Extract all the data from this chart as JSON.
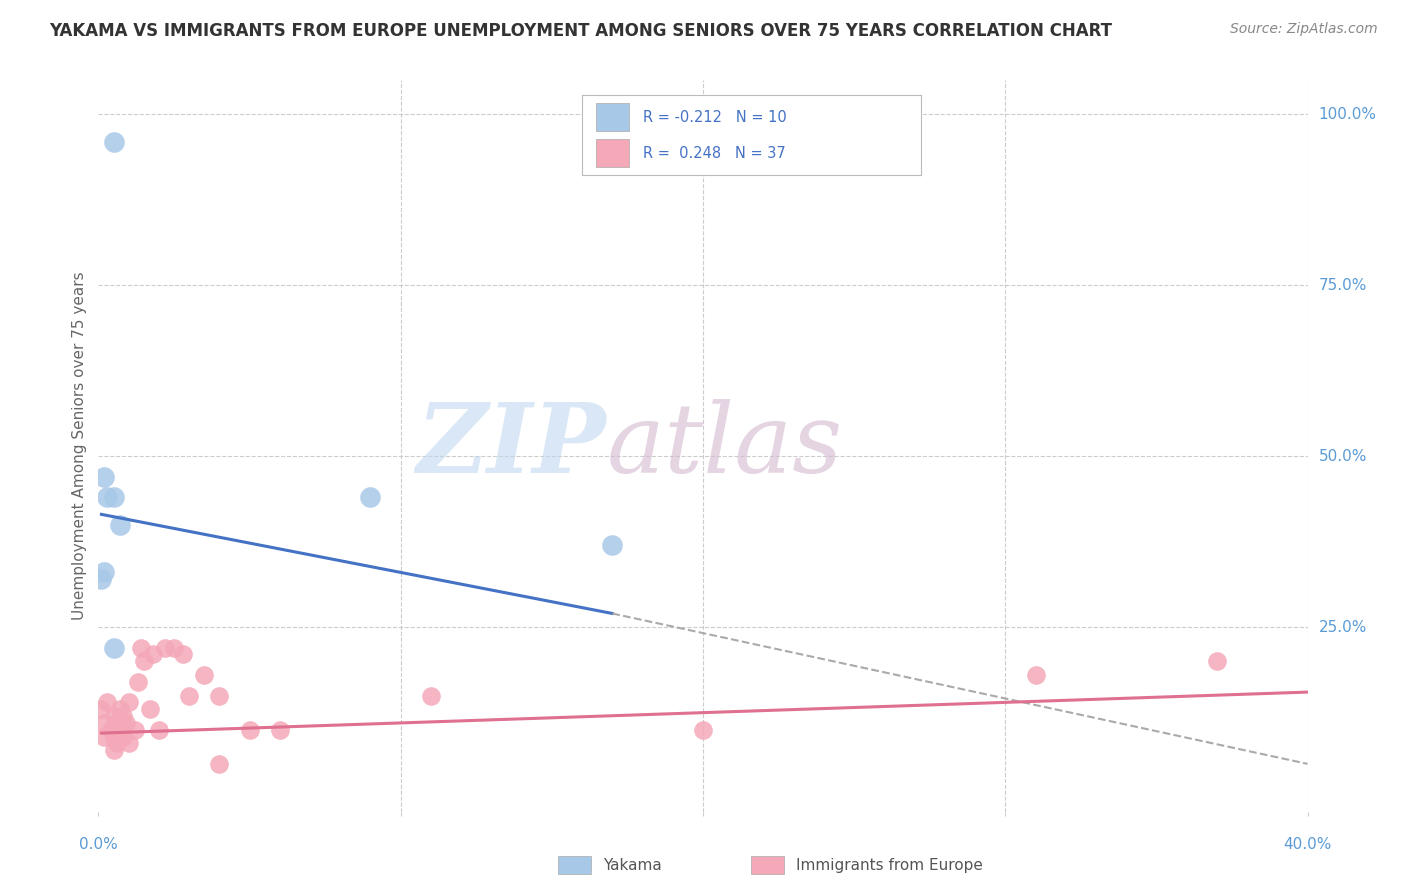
{
  "title": "YAKAMA VS IMMIGRANTS FROM EUROPE UNEMPLOYMENT AMONG SENIORS OVER 75 YEARS CORRELATION CHART",
  "source": "Source: ZipAtlas.com",
  "ylabel": "Unemployment Among Seniors over 75 years",
  "xlim": [
    0.0,
    0.4
  ],
  "ylim": [
    -0.02,
    1.05
  ],
  "legend_blue_R": "-0.212",
  "legend_blue_N": "10",
  "legend_pink_R": "0.248",
  "legend_pink_N": "37",
  "blue_color": "#a8c8e8",
  "pink_color": "#f4a8b8",
  "blue_line_color": "#4472c4",
  "pink_line_color": "#e07090",
  "dashed_line_color": "#aaaaaa",
  "title_color": "#333333",
  "source_color": "#888888",
  "axis_label_color": "#5b9bd5",
  "background_color": "#ffffff",
  "grid_color": "#cccccc",
  "watermark_zip_color": "#c8ddf0",
  "watermark_atlas_color": "#d8c8e0",
  "yakama_points": [
    [
      0.005,
      0.96
    ],
    [
      0.005,
      0.44
    ],
    [
      0.007,
      0.4
    ],
    [
      0.002,
      0.47
    ],
    [
      0.003,
      0.44
    ],
    [
      0.002,
      0.33
    ],
    [
      0.001,
      0.32
    ],
    [
      0.005,
      0.22
    ],
    [
      0.09,
      0.44
    ],
    [
      0.17,
      0.37
    ]
  ],
  "europe_points": [
    [
      0.001,
      0.13
    ],
    [
      0.002,
      0.11
    ],
    [
      0.002,
      0.09
    ],
    [
      0.003,
      0.14
    ],
    [
      0.004,
      0.1
    ],
    [
      0.005,
      0.09
    ],
    [
      0.005,
      0.12
    ],
    [
      0.005,
      0.07
    ],
    [
      0.006,
      0.08
    ],
    [
      0.006,
      0.11
    ],
    [
      0.007,
      0.1
    ],
    [
      0.007,
      0.13
    ],
    [
      0.008,
      0.09
    ],
    [
      0.008,
      0.12
    ],
    [
      0.009,
      0.11
    ],
    [
      0.01,
      0.14
    ],
    [
      0.01,
      0.08
    ],
    [
      0.012,
      0.1
    ],
    [
      0.013,
      0.17
    ],
    [
      0.014,
      0.22
    ],
    [
      0.015,
      0.2
    ],
    [
      0.017,
      0.13
    ],
    [
      0.018,
      0.21
    ],
    [
      0.02,
      0.1
    ],
    [
      0.022,
      0.22
    ],
    [
      0.025,
      0.22
    ],
    [
      0.028,
      0.21
    ],
    [
      0.03,
      0.15
    ],
    [
      0.035,
      0.18
    ],
    [
      0.04,
      0.05
    ],
    [
      0.04,
      0.15
    ],
    [
      0.05,
      0.1
    ],
    [
      0.06,
      0.1
    ],
    [
      0.11,
      0.15
    ],
    [
      0.2,
      0.1
    ],
    [
      0.31,
      0.18
    ],
    [
      0.37,
      0.2
    ]
  ],
  "blue_trendline_solid": [
    [
      0.001,
      0.415
    ],
    [
      0.17,
      0.27
    ]
  ],
  "blue_trendline_dashed": [
    [
      0.17,
      0.27
    ],
    [
      0.4,
      0.05
    ]
  ],
  "pink_trendline": [
    [
      0.001,
      0.095
    ],
    [
      0.4,
      0.155
    ]
  ]
}
